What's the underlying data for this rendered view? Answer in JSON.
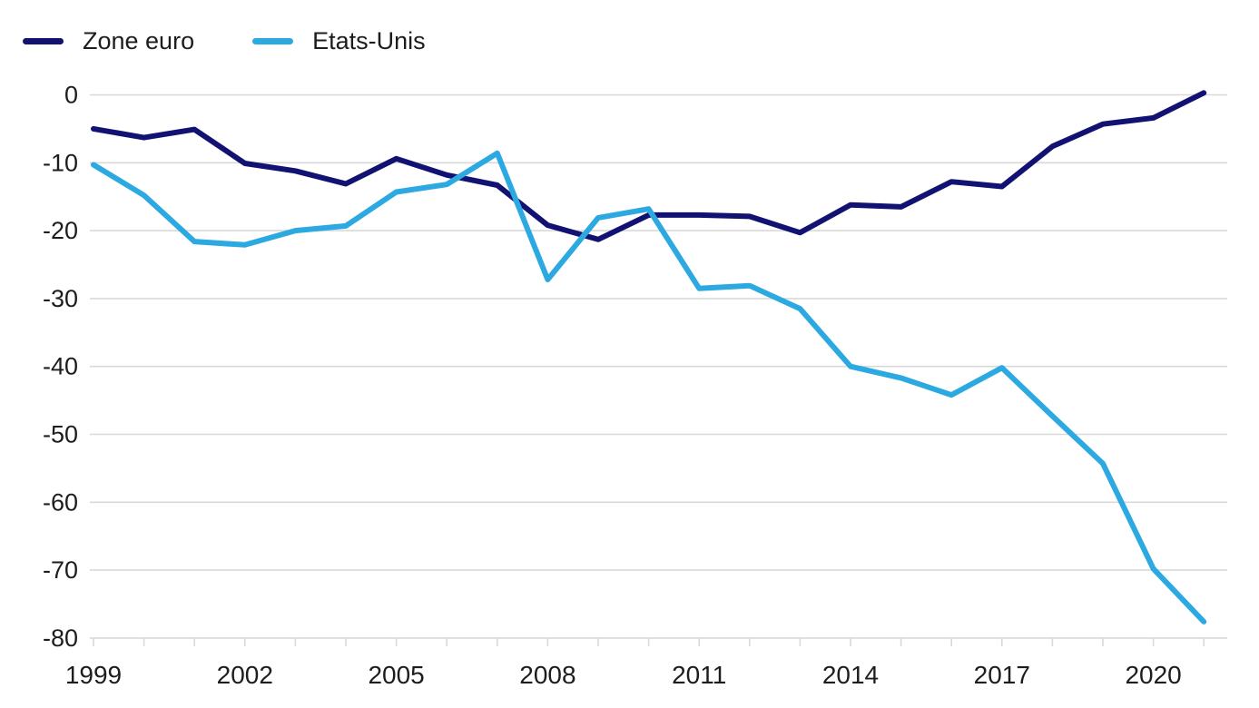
{
  "legend": {
    "items": [
      {
        "label": "Zone euro",
        "color": "#121273"
      },
      {
        "label": "Etats-Unis",
        "color": "#2da9e2"
      }
    ]
  },
  "chart_data": {
    "type": "line",
    "title": "",
    "xlabel": "",
    "ylabel": "",
    "x": [
      1999,
      2000,
      2001,
      2002,
      2003,
      2004,
      2005,
      2006,
      2007,
      2008,
      2009,
      2010,
      2011,
      2012,
      2013,
      2014,
      2015,
      2016,
      2017,
      2018,
      2019,
      2020,
      2021
    ],
    "series": [
      {
        "name": "Zone euro",
        "color": "#121273",
        "values": [
          -5.0,
          -6.3,
          -5.1,
          -10.1,
          -11.2,
          -13.1,
          -9.4,
          -11.8,
          -13.3,
          -19.2,
          -21.3,
          -17.7,
          -17.7,
          -17.9,
          -20.3,
          -16.2,
          -16.5,
          -12.8,
          -13.5,
          -7.6,
          -4.3,
          -3.4,
          0.3
        ]
      },
      {
        "name": "Etats-Unis",
        "color": "#2da9e2",
        "values": [
          -10.3,
          -14.8,
          -21.6,
          -22.1,
          -20.0,
          -19.3,
          -14.3,
          -13.2,
          -8.6,
          -27.2,
          -18.1,
          -16.8,
          -28.5,
          -28.1,
          -31.5,
          -40.0,
          -41.7,
          -44.2,
          -40.2,
          -47.3,
          -54.3,
          -69.8,
          -77.6
        ]
      }
    ],
    "ylim": [
      -80,
      0
    ],
    "yticks": [
      0,
      -10,
      -20,
      -30,
      -40,
      -50,
      -60,
      -70,
      -80
    ],
    "xtick_labels": [
      1999,
      2002,
      2005,
      2008,
      2011,
      2014,
      2017,
      2020
    ],
    "grid": "horizontal",
    "legend_position": "top-left",
    "grid_color": "#d9d9d9",
    "text_color": "#1d1d1b"
  }
}
